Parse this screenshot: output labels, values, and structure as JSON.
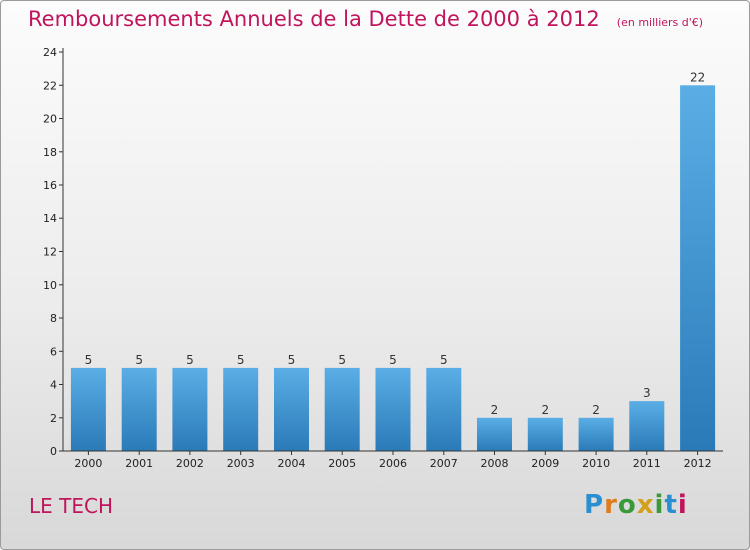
{
  "header": {
    "title": "Remboursements Annuels de la Dette de 2000 à 2012",
    "subtitle": "(en milliers d'€)"
  },
  "location_label": "LE TECH",
  "logo": {
    "letters": [
      "P",
      "r",
      "o",
      "x",
      "i",
      "t",
      "i"
    ],
    "colors": [
      "#2a8fd0",
      "#e07b1c",
      "#3a9a3a",
      "#d4a01a",
      "#3a9a3a",
      "#2a8fd0",
      "#c0145c"
    ]
  },
  "colors": {
    "bar_top": "#5aaee5",
    "bar_bottom": "#2a7ab8",
    "axis": "#333333",
    "title": "#c0145c"
  },
  "chart_data": {
    "type": "bar",
    "categories": [
      "2000",
      "2001",
      "2002",
      "2003",
      "2004",
      "2005",
      "2006",
      "2007",
      "2008",
      "2009",
      "2010",
      "2011",
      "2012"
    ],
    "values": [
      5,
      5,
      5,
      5,
      5,
      5,
      5,
      5,
      2,
      2,
      2,
      3,
      22
    ],
    "data_labels": [
      "5",
      "5",
      "5",
      "5",
      "5",
      "5",
      "5",
      "5",
      "2",
      "2",
      "2",
      "3",
      "22"
    ],
    "yticks": [
      0,
      2,
      4,
      6,
      8,
      10,
      12,
      14,
      16,
      18,
      20,
      22,
      24
    ],
    "ylim": [
      0,
      24
    ],
    "grid": false,
    "legend": "none"
  }
}
